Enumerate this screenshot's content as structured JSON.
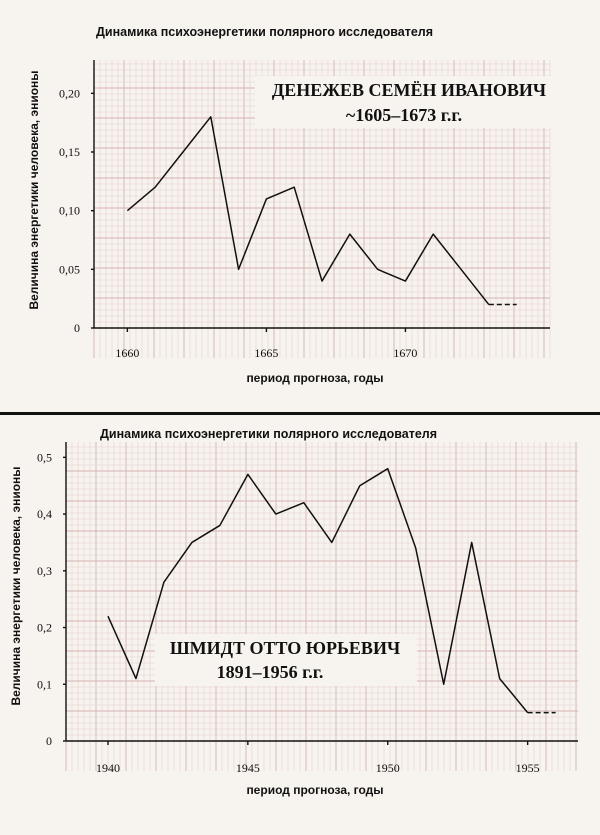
{
  "chart_data": [
    {
      "type": "line",
      "title": "Динамика психоэнергетики полярного исследователя",
      "xlabel": "период прогноза, годы",
      "ylabel": "Величина энергетики человека, энионы",
      "annotation": [
        "ДЕНЕЖЕВ СЕМЁН ИВАНОВИЧ",
        "~1605–1673 г.г."
      ],
      "xlim": [
        1658.8,
        1675.2
      ],
      "ylim": [
        0,
        0.225
      ],
      "x_ticks": [
        1660,
        1665,
        1670
      ],
      "x_tick_labels": [
        "1660",
        "1665",
        "1670"
      ],
      "y_ticks": [
        0,
        0.05,
        0.1,
        0.15,
        0.2
      ],
      "y_tick_labels": [
        "0",
        "0,05",
        "0,10",
        "0,15",
        "0,20"
      ],
      "grid": true,
      "series": [
        {
          "x": [
            1660,
            1661,
            1662,
            1663,
            1664,
            1665,
            1666,
            1667,
            1668,
            1669,
            1670,
            1671,
            1672,
            1673
          ],
          "y": [
            0.1,
            0.12,
            0.15,
            0.18,
            0.05,
            0.11,
            0.12,
            0.04,
            0.08,
            0.05,
            0.04,
            0.08,
            0.05,
            0.02
          ]
        }
      ],
      "forecast": {
        "x": [
          1673,
          1674
        ],
        "y": [
          0.02,
          0.02
        ],
        "style": "dashed"
      }
    },
    {
      "type": "line",
      "title": "Динамика психоэнергетики полярного исследователя",
      "xlabel": "период прогноза, годы",
      "ylabel": "Величина энергетики человека, энионы",
      "annotation": [
        "ШМИДТ ОТТО ЮРЬЕВИЧ",
        "1891–1956 г.г."
      ],
      "xlim": [
        1938.5,
        1956.8
      ],
      "ylim": [
        0,
        0.52
      ],
      "x_ticks": [
        1940,
        1945,
        1950,
        1955
      ],
      "x_tick_labels": [
        "1940",
        "1945",
        "1950",
        "1955"
      ],
      "y_ticks": [
        0,
        0.1,
        0.2,
        0.3,
        0.4,
        0.5
      ],
      "y_tick_labels": [
        "0",
        "0,1",
        "0,2",
        "0,3",
        "0,4",
        "0,5"
      ],
      "grid": true,
      "series": [
        {
          "x": [
            1940,
            1941,
            1942,
            1943,
            1944,
            1945,
            1946,
            1947,
            1948,
            1949,
            1950,
            1951,
            1952,
            1953,
            1954,
            1955
          ],
          "y": [
            0.22,
            0.11,
            0.28,
            0.35,
            0.38,
            0.47,
            0.4,
            0.42,
            0.35,
            0.45,
            0.48,
            0.34,
            0.1,
            0.35,
            0.11,
            0.05
          ]
        }
      ],
      "forecast": {
        "x": [
          1955,
          1956
        ],
        "y": [
          0.05,
          0.05
        ],
        "style": "dashed"
      }
    }
  ]
}
